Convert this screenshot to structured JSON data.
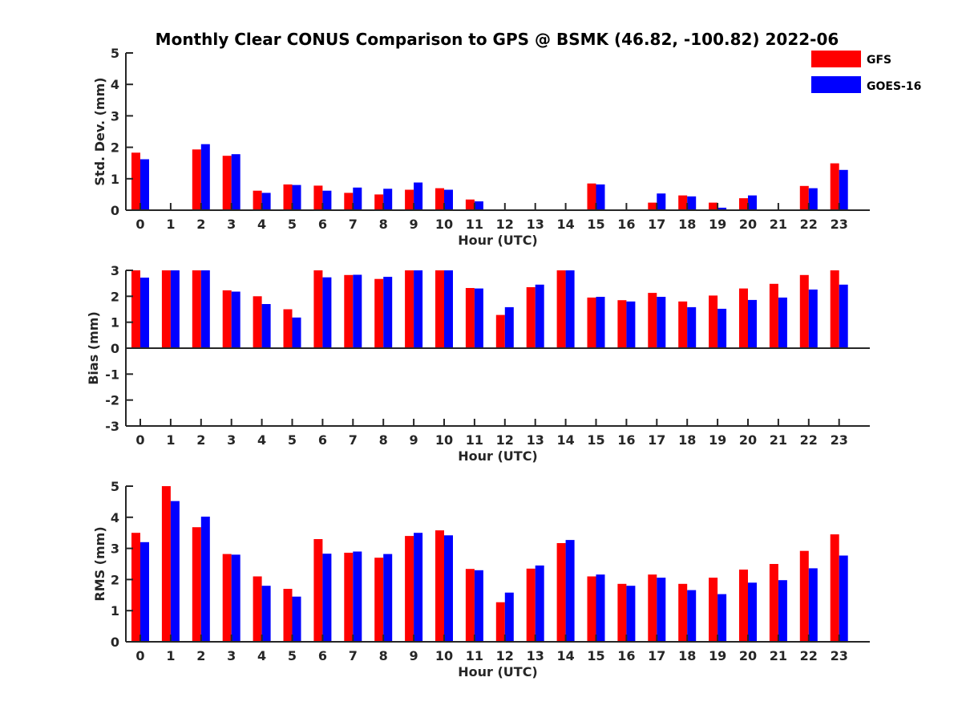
{
  "chart_data": {
    "title": "Monthly Clear CONUS Comparison to GPS @ BSMK (46.82, -100.82) 2022-06",
    "type": "bar",
    "categories": [
      "0",
      "1",
      "2",
      "3",
      "4",
      "5",
      "6",
      "7",
      "8",
      "9",
      "10",
      "11",
      "12",
      "13",
      "14",
      "15",
      "16",
      "17",
      "18",
      "19",
      "20",
      "21",
      "22",
      "23"
    ],
    "legend": {
      "placement": "top-right",
      "entries": [
        "GFS",
        "GOES-16"
      ]
    },
    "colors": {
      "GFS": "#ff0000",
      "GOES-16": "#0000ff"
    },
    "grid": false,
    "panels": [
      {
        "ylabel": "Std. Dev. (mm)",
        "xlabel": "Hour (UTC)",
        "ylim": [
          0,
          5
        ],
        "yticks": [
          "0",
          "1",
          "2",
          "3",
          "4",
          "5"
        ],
        "series": [
          {
            "name": "GFS",
            "values": [
              1.83,
              null,
              1.93,
              1.73,
              0.62,
              0.82,
              0.78,
              0.55,
              0.5,
              0.65,
              0.7,
              0.34,
              null,
              null,
              null,
              0.85,
              null,
              0.24,
              0.47,
              0.24,
              0.38,
              null,
              0.77,
              1.49
            ]
          },
          {
            "name": "GOES-16",
            "values": [
              1.62,
              null,
              2.1,
              1.78,
              0.55,
              0.8,
              0.62,
              0.72,
              0.68,
              0.88,
              0.65,
              0.28,
              null,
              null,
              null,
              0.82,
              null,
              0.53,
              0.44,
              0.08,
              0.47,
              null,
              0.7,
              1.28
            ]
          }
        ]
      },
      {
        "ylabel": "Bias (mm)",
        "xlabel": "Hour (UTC)",
        "ylim": [
          -3,
          3
        ],
        "yticks": [
          "-3",
          "-2",
          "-1",
          "0",
          "1",
          "2",
          "3"
        ],
        "series": [
          {
            "name": "GFS",
            "values": [
              3.0,
              3.0,
              3.0,
              2.23,
              2.0,
              1.5,
              3.0,
              2.82,
              2.67,
              3.0,
              3.0,
              2.32,
              1.28,
              2.35,
              3.0,
              1.95,
              1.85,
              2.13,
              1.8,
              2.03,
              2.3,
              2.48,
              2.82,
              3.0
            ]
          },
          {
            "name": "GOES-16",
            "values": [
              2.72,
              3.0,
              3.0,
              2.18,
              1.7,
              1.18,
              2.73,
              2.83,
              2.75,
              3.0,
              3.0,
              2.3,
              1.58,
              2.45,
              3.0,
              1.98,
              1.8,
              1.98,
              1.58,
              1.52,
              1.86,
              1.95,
              2.26,
              2.45
            ]
          }
        ]
      },
      {
        "ylabel": "RMS (mm)",
        "xlabel": "Hour (UTC)",
        "ylim": [
          0,
          5
        ],
        "yticks": [
          "0",
          "1",
          "2",
          "3",
          "4",
          "5"
        ],
        "series": [
          {
            "name": "GFS",
            "values": [
              3.5,
              5.0,
              3.68,
              2.82,
              2.1,
              1.7,
              3.3,
              2.86,
              2.7,
              3.4,
              3.58,
              2.34,
              1.27,
              2.35,
              3.17,
              2.1,
              1.86,
              2.16,
              1.86,
              2.06,
              2.32,
              2.5,
              2.92,
              3.45
            ]
          },
          {
            "name": "GOES-16",
            "values": [
              3.2,
              4.52,
              4.02,
              2.8,
              1.8,
              1.45,
              2.83,
              2.9,
              2.82,
              3.5,
              3.42,
              2.3,
              1.58,
              2.45,
              3.27,
              2.16,
              1.8,
              2.06,
              1.66,
              1.53,
              1.9,
              1.98,
              2.36,
              2.77
            ]
          }
        ]
      }
    ]
  }
}
